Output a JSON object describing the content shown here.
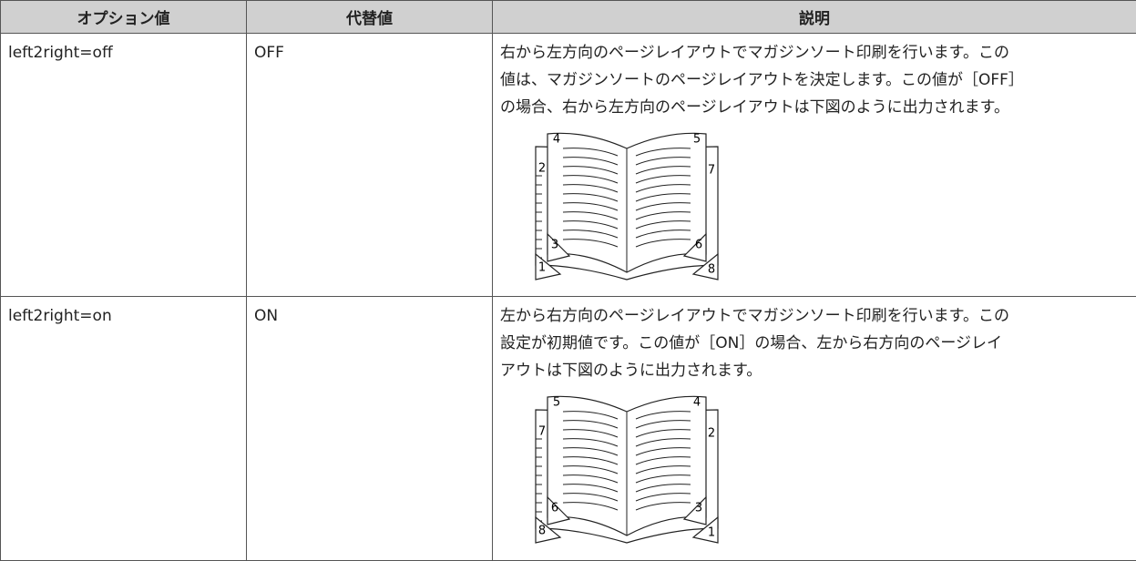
{
  "table": {
    "header": [
      "オプション値",
      "代替値",
      "説明"
    ],
    "rows": [
      {
        "option": "left2right=off",
        "value": "OFF",
        "description": [
          "右から左方向のページレイアウトでマガジンソート印刷を行います。この",
          "値は、マガジンソートのページレイアウトを決定します。この値が［OFF］",
          "の場合、右から左方向のページレイアウトは下図のように出力されます。"
        ],
        "diagram": [
          "4",
          "5",
          "2",
          "7",
          "3",
          "6",
          "1",
          "8"
        ]
      },
      {
        "option": "left2right=on",
        "value": "ON",
        "description": [
          "左から右方向のページレイアウトでマガジンソート印刷を行います。この",
          "設定が初期値です。この値が［ON］の場合、左から右方向のページレイ",
          "アウトは下図のように出力されます。"
        ],
        "diagram": [
          "5",
          "4",
          "7",
          "2",
          "6",
          "3",
          "8",
          "1"
        ]
      }
    ]
  }
}
